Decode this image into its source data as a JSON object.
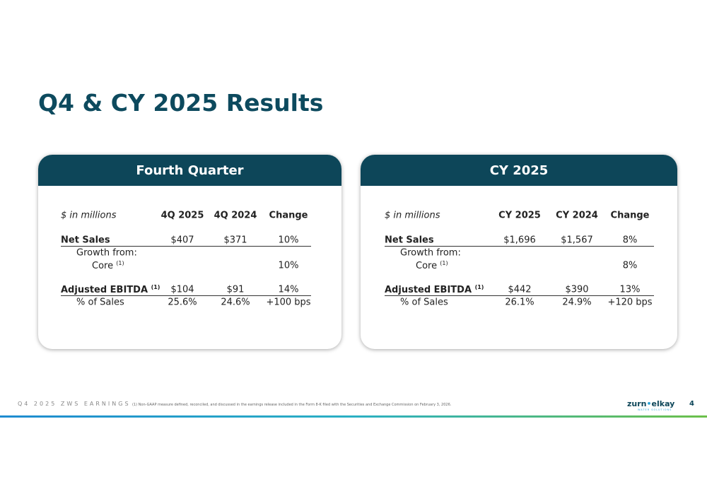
{
  "title": "Q4 & CY 2025 Results",
  "panels": [
    {
      "header": "Fourth Quarter",
      "columns": [
        "$ in millions",
        "4Q 2025",
        "4Q 2024",
        "Change"
      ],
      "rows": [
        {
          "label": "Net Sales",
          "values": [
            "$407",
            "$371",
            "10%"
          ]
        },
        {
          "label": "Growth from:"
        },
        {
          "label": "Core",
          "note": "(1)",
          "values": [
            "10%"
          ]
        },
        {
          "label": "Adjusted EBITDA",
          "note": "(1)",
          "values": [
            "$104",
            "$91",
            "14%"
          ]
        },
        {
          "label": "% of Sales",
          "values": [
            "25.6%",
            "24.6%",
            "+100 bps"
          ]
        }
      ]
    },
    {
      "header": "CY 2025",
      "columns": [
        "$ in millions",
        "CY 2025",
        "CY 2024",
        "Change"
      ],
      "rows": [
        {
          "label": "Net Sales",
          "values": [
            "$1,696",
            "$1,567",
            "8%"
          ]
        },
        {
          "label": "Growth from:"
        },
        {
          "label": "Core",
          "note": "(1)",
          "values": [
            "8%"
          ]
        },
        {
          "label": "Adjusted EBITDA",
          "note": "(1)",
          "values": [
            "$442",
            "$390",
            "13%"
          ]
        },
        {
          "label": "% of Sales",
          "values": [
            "26.1%",
            "24.9%",
            "+120 bps"
          ]
        }
      ]
    }
  ],
  "footer": {
    "section": "Q4 2025 ZWS EARNINGS",
    "footnote": "(1) Non-GAAP measure defined, reconciled, and discussed in the earnings release included in the Form 8-K filed with the Securities and Exchange Commission on February 3, 2026.",
    "logo": {
      "left": "zurn",
      "right": "elkay",
      "tagline": "WATER SOLUTIONS"
    },
    "page": "4"
  }
}
